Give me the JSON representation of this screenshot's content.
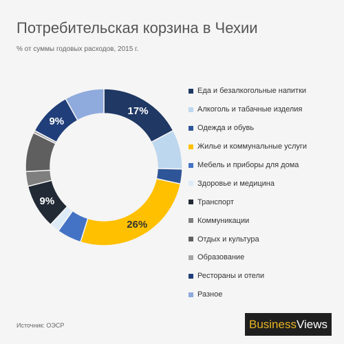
{
  "title": "Потребительская корзина в Чехии",
  "subtitle": "% от суммы годовых расходов, 2015 г.",
  "source": "Источник: ОЭСР",
  "logo": {
    "part1": "Business",
    "part2": "Views"
  },
  "chart_data": {
    "type": "pie",
    "variant": "donut",
    "unit": "%",
    "legend_position": "right",
    "slices": [
      {
        "label": "Еда и безалкогольные напитки",
        "value": 17,
        "color": "#1f3864",
        "data_label": "17%",
        "label_color": "#ffffff"
      },
      {
        "label": "Алкоголь и табачные изделия",
        "value": 8,
        "color": "#bdd7ee",
        "data_label": "",
        "label_color": "#333333"
      },
      {
        "label": "Одежда и обувь",
        "value": 3,
        "color": "#2e5597",
        "data_label": "",
        "label_color": "#ffffff"
      },
      {
        "label": "Жилье и коммунальные услуги",
        "value": 26,
        "color": "#ffc000",
        "data_label": "26%",
        "label_color": "#333333"
      },
      {
        "label": "Мебель и приборы для дома",
        "value": 5,
        "color": "#4472c4",
        "data_label": "",
        "label_color": "#ffffff"
      },
      {
        "label": "Здоровье и медицина",
        "value": 2,
        "color": "#ddebf7",
        "data_label": "",
        "label_color": "#333333"
      },
      {
        "label": "Транспорт",
        "value": 9,
        "color": "#222a35",
        "data_label": "9%",
        "label_color": "#ffffff"
      },
      {
        "label": "Коммуникации",
        "value": 3,
        "color": "#7f7f7f",
        "data_label": "",
        "label_color": "#ffffff"
      },
      {
        "label": "Отдых и культура",
        "value": 8,
        "color": "#5f5f5f",
        "data_label": "",
        "label_color": "#ffffff"
      },
      {
        "label": "Образование",
        "value": 0.5,
        "color": "#a5a5a5",
        "data_label": "",
        "label_color": "#ffffff"
      },
      {
        "label": "Рестораны и отели",
        "value": 9,
        "color": "#203e7a",
        "data_label": "9%",
        "label_color": "#ffffff"
      },
      {
        "label": "Разное",
        "value": 8,
        "color": "#8faadc",
        "data_label": "",
        "label_color": "#333333"
      }
    ]
  }
}
